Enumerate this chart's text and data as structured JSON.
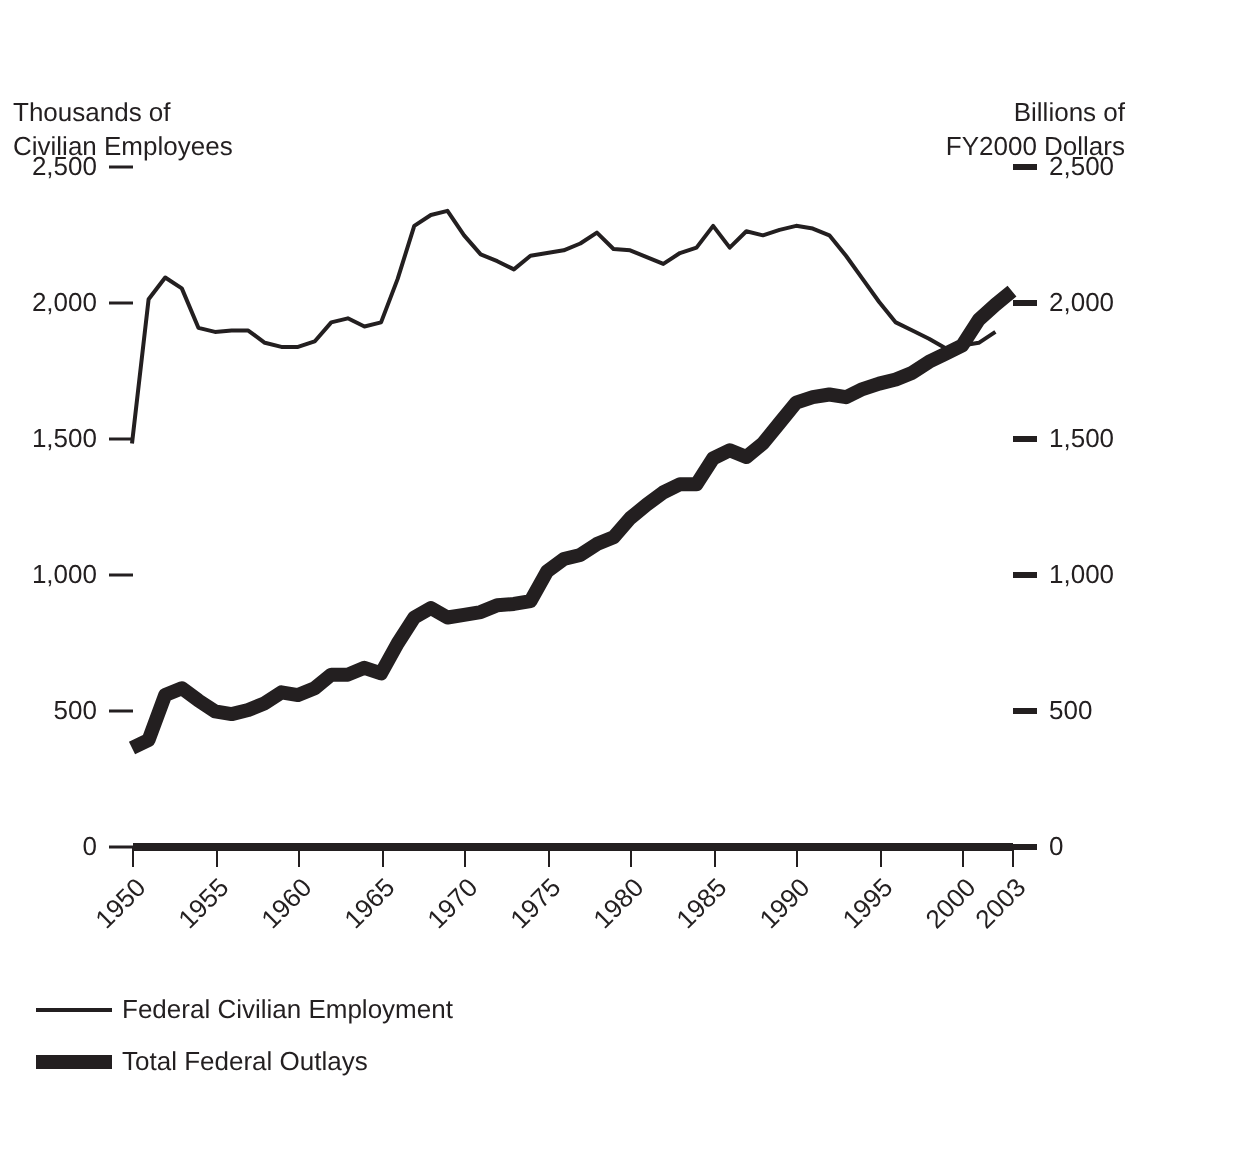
{
  "chart_data": {
    "type": "line",
    "ylabel": "Thousands of Civilian Employees",
    "y2label": "Billions of FY2000 Dollars",
    "x": [
      1950,
      1951,
      1952,
      1953,
      1954,
      1955,
      1956,
      1957,
      1958,
      1959,
      1960,
      1961,
      1962,
      1963,
      1964,
      1965,
      1966,
      1967,
      1968,
      1969,
      1970,
      1971,
      1972,
      1973,
      1974,
      1975,
      1976,
      1977,
      1978,
      1979,
      1980,
      1981,
      1982,
      1983,
      1984,
      1985,
      1986,
      1987,
      1988,
      1989,
      1990,
      1991,
      1992,
      1993,
      1994,
      1995,
      1996,
      1997,
      1998,
      1999,
      2000,
      2001,
      2002,
      2003
    ],
    "series": [
      {
        "name": "Federal Civilian Employment",
        "color": "#231f20",
        "values": [
          1480,
          2010,
          2090,
          2050,
          1905,
          1890,
          1895,
          1895,
          1850,
          1835,
          1835,
          1855,
          1925,
          1940,
          1910,
          1925,
          2085,
          2280,
          2320,
          2335,
          2245,
          2175,
          2150,
          2120,
          2170,
          2180,
          2190,
          2215,
          2255,
          2195,
          2190,
          2165,
          2140,
          2180,
          2200,
          2280,
          2200,
          2260,
          2245,
          2265,
          2280,
          2270,
          2245,
          2170,
          2085,
          2000,
          1925,
          1895,
          1865,
          1830,
          1840,
          1850,
          1890,
          null
        ]
      },
      {
        "name": "Total Federal Outlays",
        "color": "#231f20",
        "axis": "y2",
        "values": [
          360,
          390,
          555,
          580,
          535,
          495,
          485,
          500,
          525,
          565,
          555,
          580,
          630,
          630,
          655,
          635,
          745,
          840,
          875,
          840,
          850,
          860,
          885,
          890,
          900,
          1010,
          1055,
          1070,
          1110,
          1135,
          1205,
          1255,
          1300,
          1330,
          1330,
          1425,
          1455,
          1430,
          1480,
          1555,
          1630,
          1650,
          1660,
          1650,
          1680,
          1700,
          1715,
          1740,
          1780,
          1810,
          1840,
          1935,
          1990,
          2040
        ]
      }
    ],
    "xlim": [
      1950,
      2003
    ],
    "xticks": [
      1950,
      1955,
      1960,
      1965,
      1970,
      1975,
      1980,
      1985,
      1990,
      1995,
      2000,
      2003
    ],
    "ylim": [
      0,
      2500
    ],
    "yticks": [
      0,
      500,
      {
        "value": 1000,
        "label": "1,000"
      },
      {
        "value": 1500,
        "label": "1,500"
      },
      {
        "value": 2000,
        "label": "2,000"
      },
      {
        "value": 2500,
        "label": "2,500"
      }
    ],
    "y2lim": [
      0,
      2500
    ],
    "y2ticks": [
      0,
      500,
      {
        "value": 1000,
        "label": "1,000"
      },
      {
        "value": 1500,
        "label": "1,500"
      },
      {
        "value": 2000,
        "label": "2,000"
      },
      {
        "value": 2500,
        "label": "2,500"
      }
    ],
    "grid": false,
    "legend": "bottom left",
    "marker": "none",
    "line_style": "solid"
  }
}
